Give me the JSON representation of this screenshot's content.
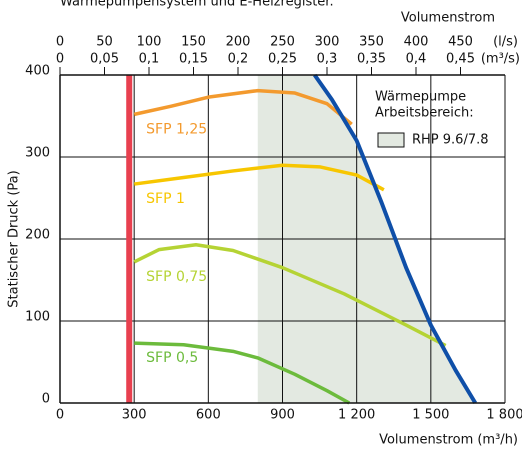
{
  "chart_data": {
    "type": "line",
    "title": "Wärmepumpensystem und E-Heizregister.",
    "x_label": "Volumenstrom (m³/h)",
    "y_label": "Statischer Druck (Pa)",
    "top_label": "Volumenstrom",
    "x2_unit": "(l/s)",
    "x3_unit": "(m³/s)",
    "xlim": [
      0,
      1800
    ],
    "xticks": [
      0,
      300,
      600,
      900,
      {
        "value": 1200,
        "label": "1 200"
      },
      {
        "value": 1500,
        "label": "1 500"
      },
      {
        "value": 1800,
        "label": "1 800"
      }
    ],
    "x2lim": [
      0,
      500
    ],
    "x2ticks": [
      0,
      50,
      100,
      150,
      200,
      250,
      300,
      350,
      400,
      450
    ],
    "x3lim": [
      0,
      0.5
    ],
    "x3ticks": [
      0,
      {
        "value": 0.05,
        "label": "0,05"
      },
      {
        "value": 0.1,
        "label": "0,1"
      },
      {
        "value": 0.15,
        "label": "0,15"
      },
      {
        "value": 0.2,
        "label": "0,2"
      },
      {
        "value": 0.25,
        "label": "0,25"
      },
      {
        "value": 0.3,
        "label": "0,3"
      },
      {
        "value": 0.35,
        "label": "0,35"
      },
      {
        "value": 0.4,
        "label": "0,4"
      },
      {
        "value": 0.45,
        "label": "0,45"
      }
    ],
    "ylim": [
      0,
      400
    ],
    "yticks": [
      0,
      100,
      200,
      300,
      400
    ],
    "grid": true,
    "vline": {
      "x": 280,
      "color": "#e8404f"
    },
    "range": {
      "x_start": 800,
      "color": "#e3e9e1",
      "title": "Wärmepumpe",
      "subtitle": "Arbeitsbereich:",
      "name": "RHP 9.6/7.8"
    },
    "series": [
      {
        "name": "SFP 1,25",
        "color": "#f39a2e",
        "x": [
          300,
          450,
          600,
          800,
          950,
          1080,
          1180
        ],
        "values": [
          352,
          362,
          373,
          381,
          378,
          365,
          340
        ]
      },
      {
        "name": "SFP 1",
        "color": "#f7c600",
        "x": [
          300,
          500,
          700,
          900,
          1050,
          1200,
          1310
        ],
        "values": [
          267,
          275,
          283,
          290,
          288,
          278,
          260
        ]
      },
      {
        "name": "SFP 0,75",
        "color": "#b5d334",
        "x": [
          300,
          400,
          550,
          700,
          900,
          1150,
          1400,
          1560
        ],
        "values": [
          172,
          187,
          193,
          186,
          165,
          133,
          95,
          70
        ]
      },
      {
        "name": "SFP 0,5",
        "color": "#6cbb3c",
        "x": [
          300,
          500,
          700,
          800,
          950,
          1080,
          1170
        ],
        "values": [
          73,
          71,
          63,
          55,
          35,
          15,
          0
        ]
      },
      {
        "color": "#0f4fa8",
        "x": [
          1030,
          1100,
          1200,
          1300,
          1400,
          1500,
          1600,
          1680
        ],
        "values": [
          400,
          370,
          320,
          245,
          165,
          95,
          40,
          0
        ]
      }
    ]
  }
}
